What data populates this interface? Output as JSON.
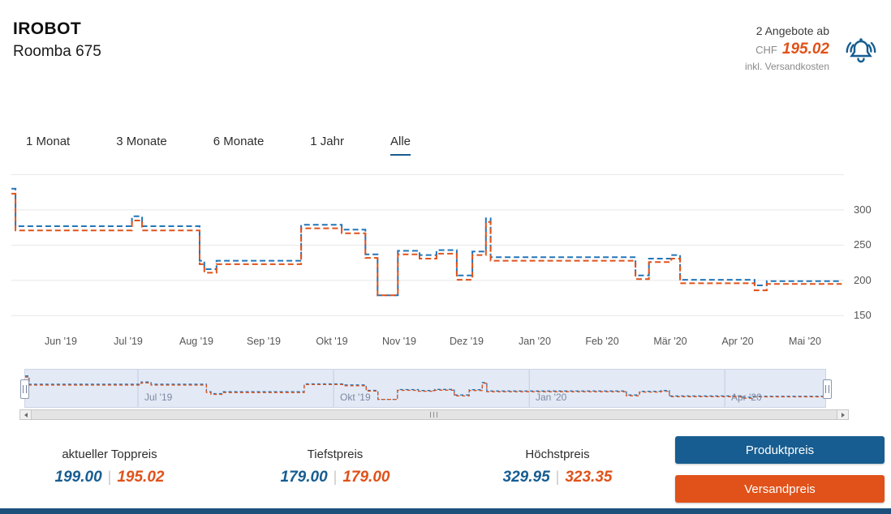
{
  "header": {
    "brand": "IROBOT",
    "product": "Roomba 675",
    "offers_text": "2 Angebote ab",
    "currency": "CHF",
    "price": "195.02",
    "shipping_note": "inkl. Versandkosten",
    "bell_color": "#175d91"
  },
  "tabs": {
    "items": [
      {
        "label": "1 Monat",
        "active": false
      },
      {
        "label": "3 Monate",
        "active": false
      },
      {
        "label": "6 Monate",
        "active": false
      },
      {
        "label": "1 Jahr",
        "active": false
      },
      {
        "label": "Alle",
        "active": true
      }
    ]
  },
  "chart_data": {
    "type": "line",
    "line_style": "dashed-step",
    "y_axis_side": "right",
    "x_tick_labels": [
      "Jun '19",
      "Jul '19",
      "Aug '19",
      "Sep '19",
      "Okt '19",
      "Nov '19",
      "Dez '19",
      "Jan '20",
      "Feb '20",
      "Mär '20",
      "Apr '20",
      "Mai '20"
    ],
    "x_tick_months": [
      1,
      2,
      3,
      4,
      5,
      6,
      7,
      8,
      9,
      10,
      11,
      12
    ],
    "y_ticks": [
      300,
      250,
      200,
      150
    ],
    "grid_values": [
      350,
      300,
      250,
      200,
      150
    ],
    "x_range": [
      0.27,
      12.54
    ],
    "series": [
      {
        "name": "Produktpreis",
        "color": "#2276b9",
        "dashed": true,
        "step_points": [
          [
            0.27,
            330
          ],
          [
            0.33,
            277
          ],
          [
            2.05,
            291
          ],
          [
            2.2,
            277
          ],
          [
            3.05,
            228
          ],
          [
            3.12,
            216
          ],
          [
            3.3,
            228
          ],
          [
            4.55,
            279
          ],
          [
            5.15,
            272
          ],
          [
            5.5,
            237
          ],
          [
            5.68,
            179
          ],
          [
            5.98,
            242
          ],
          [
            6.3,
            236
          ],
          [
            6.55,
            243
          ],
          [
            6.85,
            207
          ],
          [
            7.08,
            241
          ],
          [
            7.28,
            288
          ],
          [
            7.35,
            233
          ],
          [
            9.49,
            207
          ],
          [
            9.69,
            231
          ],
          [
            10.02,
            236
          ],
          [
            10.15,
            201
          ],
          [
            11.25,
            193
          ],
          [
            11.43,
            199
          ]
        ]
      },
      {
        "name": "Versandpreis",
        "color": "#e0521a",
        "dashed": true,
        "step_points": [
          [
            0.27,
            323
          ],
          [
            0.33,
            271
          ],
          [
            2.05,
            285
          ],
          [
            2.2,
            271
          ],
          [
            3.05,
            223
          ],
          [
            3.12,
            211
          ],
          [
            3.3,
            223
          ],
          [
            4.55,
            274
          ],
          [
            5.15,
            267
          ],
          [
            5.5,
            232
          ],
          [
            5.68,
            179
          ],
          [
            5.98,
            237
          ],
          [
            6.3,
            231
          ],
          [
            6.55,
            238
          ],
          [
            6.85,
            201
          ],
          [
            7.08,
            236
          ],
          [
            7.28,
            283
          ],
          [
            7.35,
            228
          ],
          [
            9.49,
            202
          ],
          [
            9.69,
            226
          ],
          [
            10.02,
            231
          ],
          [
            10.15,
            196
          ],
          [
            11.25,
            186
          ],
          [
            11.43,
            195
          ]
        ]
      }
    ],
    "navigator": {
      "labels": [
        "Jul '19",
        "Okt '19",
        "Jan '20",
        "Apr '20"
      ],
      "label_months": [
        2,
        5,
        8,
        11
      ]
    }
  },
  "stats": [
    {
      "label": "aktueller Toppreis",
      "product_price": "199.00",
      "shipping_price": "195.02"
    },
    {
      "label": "Tiefstpreis",
      "product_price": "179.00",
      "shipping_price": "179.00"
    },
    {
      "label": "Höchstpreis",
      "product_price": "329.95",
      "shipping_price": "323.35"
    }
  ],
  "buttons": {
    "product": {
      "label": "Produktpreis",
      "color": "#175d91"
    },
    "shipping": {
      "label": "Versandpreis",
      "color": "#e0521a"
    }
  }
}
